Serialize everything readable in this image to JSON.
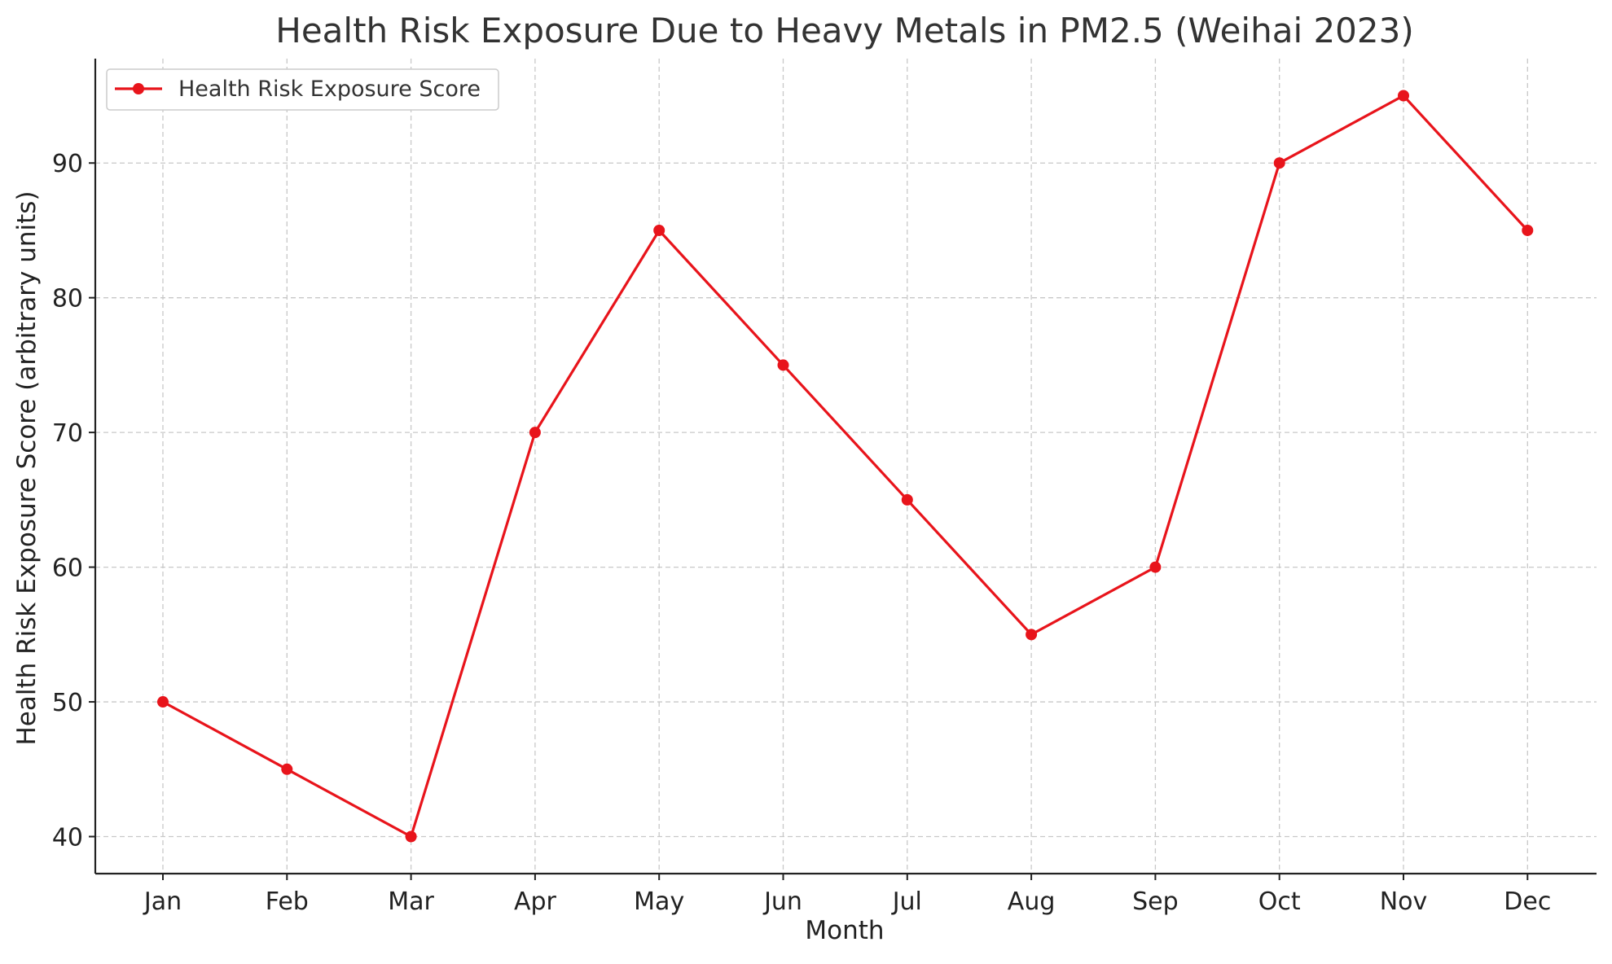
{
  "chart_data": {
    "type": "line",
    "title": "Health Risk Exposure Due to Heavy Metals in PM2.5 (Weihai 2023)",
    "xlabel": "Month",
    "ylabel": "Health Risk Exposure Score (arbitrary units)",
    "categories": [
      "Jan",
      "Feb",
      "Mar",
      "Apr",
      "May",
      "Jun",
      "Jul",
      "Aug",
      "Sep",
      "Oct",
      "Nov",
      "Dec"
    ],
    "series": [
      {
        "name": "Health Risk Exposure Score",
        "color": "#e8141b",
        "marker": "circle",
        "values": [
          50,
          45,
          40,
          70,
          85,
          75,
          65,
          55,
          60,
          90,
          95,
          85
        ]
      }
    ],
    "yticks": [
      40,
      50,
      60,
      70,
      80,
      90
    ],
    "ylim": [
      37.25,
      97.75
    ],
    "grid": true,
    "legend": "top-left"
  }
}
